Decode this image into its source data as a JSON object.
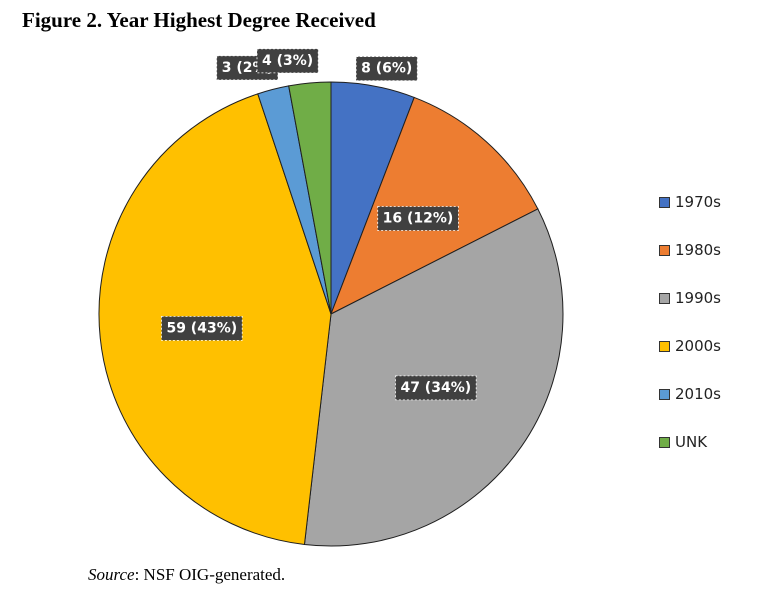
{
  "figure_title": "Figure 2. Year Highest Degree Received",
  "source": {
    "label": "Source",
    "text": ": NSF OIG-generated."
  },
  "chart_data": {
    "type": "pie",
    "title": "",
    "categories": [
      "1970s",
      "1980s",
      "1990s",
      "2000s",
      "2010s",
      "UNK"
    ],
    "values": [
      8,
      16,
      47,
      59,
      3,
      4
    ],
    "percents": [
      6,
      12,
      34,
      43,
      2,
      3
    ],
    "data_labels": [
      "8 (6%)",
      "16 (12%)",
      "47 (34%)",
      "59 (43%)",
      "3 (2%)",
      "4 (3%)"
    ],
    "colors": [
      "#4472C4",
      "#ED7D31",
      "#A5A5A5",
      "#FFC000",
      "#5B9BD5",
      "#70AD47"
    ],
    "start_angle": "12 o'clock, clockwise",
    "legend": {
      "placement": "right",
      "entries": [
        "1970s",
        "1980s",
        "1990s",
        "2000s",
        "2010s",
        "UNK"
      ]
    }
  }
}
